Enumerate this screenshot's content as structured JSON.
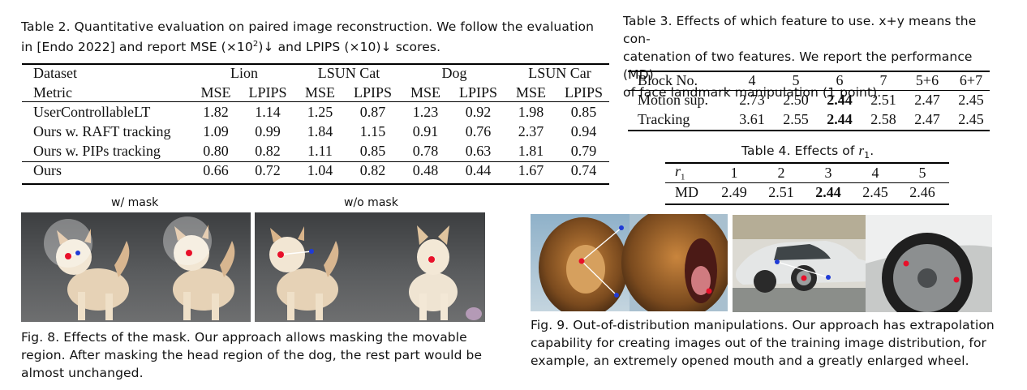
{
  "table2": {
    "caption": "Table 2.  Quantitative evaluation on paired image reconstruction. We follow the evaluation in [Endo 2022] and report MSE (×10²)↓ and LPIPS (×10)↓ scores.",
    "caption_line1": "Table 2.  Quantitative evaluation on paired image reconstruction. We follow the evaluation",
    "caption_line2": "in [Endo 2022] and report MSE (×10",
    "caption_sup": "2",
    "caption_line2b": ")↓ and LPIPS (×10)↓ scores.",
    "header_dataset": "Dataset",
    "header_metric": "Metric",
    "datasets": [
      "Lion",
      "LSUN Cat",
      "Dog",
      "LSUN Car"
    ],
    "metrics": [
      "MSE",
      "LPIPS",
      "MSE",
      "LPIPS",
      "MSE",
      "LPIPS",
      "MSE",
      "LPIPS"
    ],
    "rows": [
      {
        "name": "UserControllableLT",
        "values": [
          "1.82",
          "1.14",
          "1.25",
          "0.87",
          "1.23",
          "0.92",
          "1.98",
          "0.85"
        ]
      },
      {
        "name": "Ours w. RAFT tracking",
        "values": [
          "1.09",
          "0.99",
          "1.84",
          "1.15",
          "0.91",
          "0.76",
          "2.37",
          "0.94"
        ]
      },
      {
        "name": "Ours w. PIPs tracking",
        "values": [
          "0.80",
          "0.82",
          "1.11",
          "0.85",
          "0.78",
          "0.63",
          "1.81",
          "0.79"
        ]
      },
      {
        "name": "Ours",
        "values": [
          "0.66",
          "0.72",
          "1.04",
          "0.82",
          "0.48",
          "0.44",
          "1.67",
          "0.74"
        ]
      }
    ]
  },
  "table3": {
    "caption_line1": "Table 3.  Effects of which feature to use. x+y means the con-",
    "caption_line2": "catenation of two features. We report the performance (MD)",
    "caption_line3": "of face landmark manipulation (1 point).",
    "header_label": "Block No.",
    "blocks": [
      "4",
      "5",
      "6",
      "7",
      "5+6",
      "6+7"
    ],
    "rows": [
      {
        "name": "Motion sup.",
        "values": [
          "2.73",
          "2.50",
          "2.44",
          "2.51",
          "2.47",
          "2.45"
        ]
      },
      {
        "name": "Tracking",
        "values": [
          "3.61",
          "2.55",
          "2.44",
          "2.58",
          "2.47",
          "2.45"
        ]
      }
    ]
  },
  "table4": {
    "caption_prefix": "Table 4.  Effects of ",
    "caption_var": "r",
    "caption_sub": "1",
    "caption_suffix": ".",
    "row_var": "r",
    "row_sub": "1",
    "values_r1": [
      "1",
      "2",
      "3",
      "4",
      "5"
    ],
    "md_label": "MD",
    "values_md": [
      "2.49",
      "2.51",
      "2.44",
      "2.45",
      "2.46"
    ]
  },
  "fig8": {
    "label_mask": "w/ mask",
    "label_nomask": "w/o mask",
    "caption_line1": "Fig. 8.  Effects of the mask. Our approach allows masking the movable",
    "caption_line2": "region. After masking the head region of the dog, the rest part would be",
    "caption_line3": "almost unchanged."
  },
  "fig9": {
    "caption_line1": "Fig. 9.  Out-of-distribution manipulations. Our approach has extrapolation",
    "caption_line2": "capability for creating images out of the training image distribution, for",
    "caption_line3": "example, an extremely opened mouth and a greatly enlarged wheel."
  },
  "colors": {
    "handle": "#e8102a",
    "target": "#1f3bd6"
  }
}
